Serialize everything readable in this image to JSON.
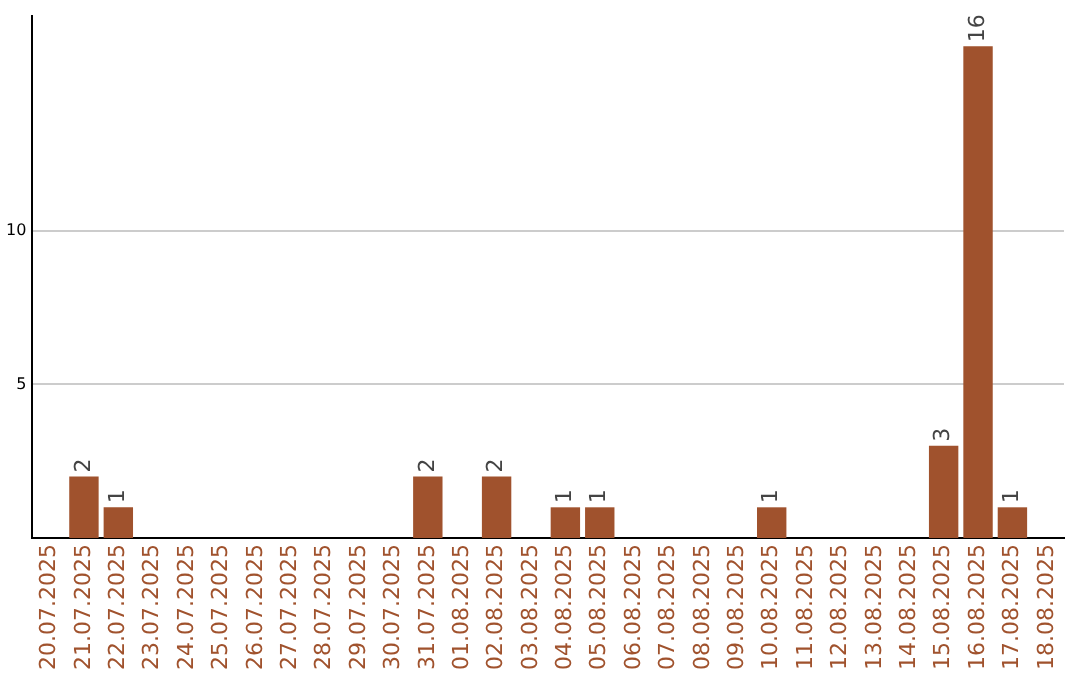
{
  "chart_data": {
    "type": "bar",
    "categories": [
      "20.07.2025",
      "21.07.2025",
      "22.07.2025",
      "23.07.2025",
      "24.07.2025",
      "25.07.2025",
      "26.07.2025",
      "27.07.2025",
      "28.07.2025",
      "29.07.2025",
      "30.07.2025",
      "31.07.2025",
      "01.08.2025",
      "02.08.2025",
      "03.08.2025",
      "04.08.2025",
      "05.08.2025",
      "06.08.2025",
      "07.08.2025",
      "08.08.2025",
      "09.08.2025",
      "10.08.2025",
      "11.08.2025",
      "12.08.2025",
      "13.08.2025",
      "14.08.2025",
      "15.08.2025",
      "16.08.2025",
      "17.08.2025",
      "18.08.2025"
    ],
    "values": [
      0,
      2,
      1,
      0,
      0,
      0,
      0,
      0,
      0,
      0,
      0,
      2,
      0,
      2,
      0,
      1,
      1,
      0,
      0,
      0,
      0,
      1,
      0,
      0,
      0,
      0,
      3,
      16,
      1,
      0
    ],
    "value_labels": [
      null,
      "2",
      "1",
      null,
      null,
      null,
      null,
      null,
      null,
      null,
      null,
      "2",
      null,
      "2",
      null,
      "1",
      "1",
      null,
      null,
      null,
      null,
      "1",
      null,
      null,
      null,
      null,
      "3",
      "16",
      "1",
      null
    ],
    "color": "#a0522d",
    "ylim": [
      0,
      17
    ],
    "yticks": [
      5,
      10
    ],
    "grid": "y",
    "legend": false
  }
}
